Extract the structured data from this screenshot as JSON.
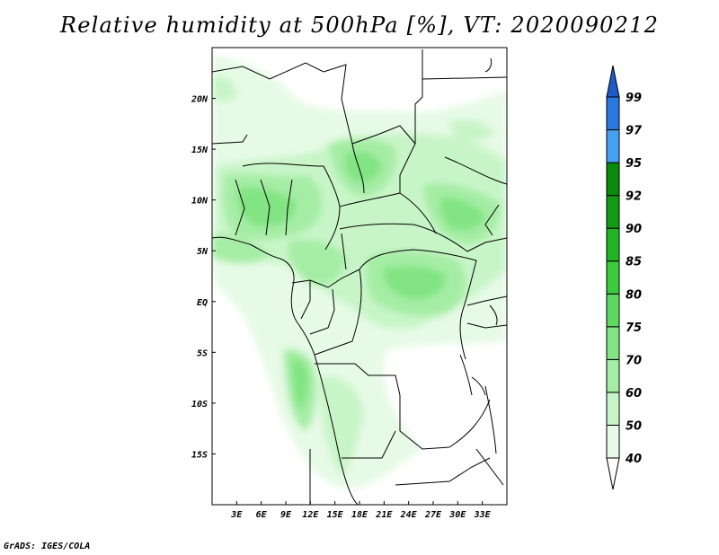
{
  "title": "Relative humidity at 500hPa [%], VT: 2020090212",
  "credit": "GrADS: IGES/COLA",
  "map": {
    "lon_range": [
      0,
      36
    ],
    "lat_range": [
      -20,
      25
    ],
    "lon_ticks": [
      {
        "value": 3,
        "label": "3E"
      },
      {
        "value": 6,
        "label": "6E"
      },
      {
        "value": 9,
        "label": "9E"
      },
      {
        "value": 12,
        "label": "12E"
      },
      {
        "value": 15,
        "label": "15E"
      },
      {
        "value": 18,
        "label": "18E"
      },
      {
        "value": 21,
        "label": "21E"
      },
      {
        "value": 24,
        "label": "24E"
      },
      {
        "value": 27,
        "label": "27E"
      },
      {
        "value": 30,
        "label": "30E"
      },
      {
        "value": 33,
        "label": "33E"
      }
    ],
    "lat_ticks": [
      {
        "value": 20,
        "label": "20N"
      },
      {
        "value": 15,
        "label": "15N"
      },
      {
        "value": 10,
        "label": "10N"
      },
      {
        "value": 5,
        "label": "5N"
      },
      {
        "value": 0,
        "label": "EQ"
      },
      {
        "value": -5,
        "label": "5S"
      },
      {
        "value": -10,
        "label": "10S"
      },
      {
        "value": -15,
        "label": "15S"
      }
    ]
  },
  "colorbar": {
    "levels": [
      "40",
      "50",
      "60",
      "70",
      "75",
      "80",
      "85",
      "90",
      "92",
      "95",
      "97",
      "99"
    ],
    "colors": [
      "#ffffff",
      "#e6fae6",
      "#c8f5c8",
      "#a5eda5",
      "#82e482",
      "#5ed85e",
      "#3ccb3c",
      "#22b422",
      "#129a12",
      "#0a8a0a",
      "#46a0f0",
      "#2a78dc",
      "#1e5ac8"
    ]
  }
}
